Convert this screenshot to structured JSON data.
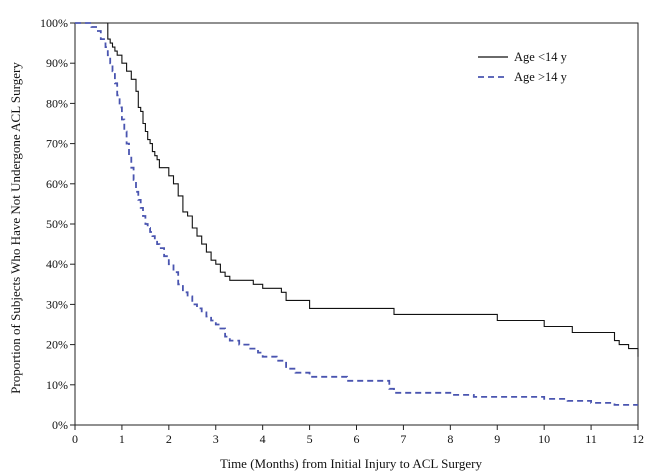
{
  "chart_data": {
    "type": "line",
    "title": "",
    "xlabel": "Time (Months) from Initial Injury to ACL Surgery",
    "ylabel": "Proportion of Subjects Who Have Not Undergone ACL Surgery",
    "xlim": [
      0,
      12
    ],
    "ylim": [
      0,
      100
    ],
    "x_ticks": [
      0,
      1,
      2,
      3,
      4,
      5,
      6,
      7,
      8,
      9,
      10,
      11,
      12
    ],
    "y_ticks": [
      0,
      10,
      20,
      30,
      40,
      50,
      60,
      70,
      80,
      90,
      100
    ],
    "y_tick_labels": [
      "0%",
      "10%",
      "20%",
      "30%",
      "40%",
      "50%",
      "60%",
      "70%",
      "80%",
      "90%",
      "100%"
    ],
    "grid": false,
    "legend_position": "top-right",
    "series": [
      {
        "name": "Age <14 y",
        "style": "solid",
        "color": "#111111",
        "x": [
          0,
          0.7,
          0.7,
          0.75,
          0.8,
          0.85,
          0.9,
          0.95,
          1.0,
          1.1,
          1.2,
          1.3,
          1.35,
          1.4,
          1.45,
          1.5,
          1.55,
          1.6,
          1.65,
          1.7,
          1.75,
          1.8,
          1.9,
          2.0,
          2.1,
          2.2,
          2.3,
          2.4,
          2.5,
          2.6,
          2.7,
          2.8,
          2.9,
          3.0,
          3.1,
          3.2,
          3.3,
          3.5,
          3.8,
          4.0,
          4.4,
          4.5,
          5.0,
          6.8,
          9.0,
          10.0,
          10.6,
          11.0,
          11.5,
          11.6,
          11.8,
          12.0
        ],
        "y": [
          100,
          100,
          96,
          95,
          94,
          93,
          92,
          92,
          90,
          88,
          86,
          83,
          79,
          78,
          75,
          73,
          71,
          70,
          68,
          67,
          66,
          64,
          64,
          62,
          60,
          57,
          53,
          52,
          49,
          47,
          45,
          43,
          41,
          40,
          38,
          37,
          36,
          36,
          35,
          34,
          33,
          31,
          29,
          27.5,
          26,
          24.5,
          23,
          23,
          21,
          20,
          19,
          17
        ]
      },
      {
        "name": "Age >14 y",
        "style": "dashed",
        "color": "#4a55b0",
        "x": [
          0,
          0.35,
          0.45,
          0.55,
          0.65,
          0.7,
          0.75,
          0.8,
          0.85,
          0.9,
          0.95,
          1.0,
          1.05,
          1.1,
          1.15,
          1.2,
          1.25,
          1.3,
          1.35,
          1.4,
          1.45,
          1.5,
          1.55,
          1.6,
          1.65,
          1.7,
          1.75,
          1.8,
          1.9,
          2.0,
          2.1,
          2.2,
          2.3,
          2.4,
          2.5,
          2.6,
          2.7,
          2.8,
          2.9,
          3.0,
          3.1,
          3.2,
          3.3,
          3.5,
          3.7,
          3.9,
          4.0,
          4.3,
          4.5,
          4.7,
          5.0,
          5.8,
          6.7,
          6.8,
          8.0,
          8.5,
          10.0,
          10.5,
          11.0,
          11.5,
          11.8,
          12.0
        ],
        "y": [
          100,
          99,
          98,
          96,
          94,
          92,
          90,
          88,
          85,
          82,
          79,
          76,
          73,
          70,
          67,
          64,
          61,
          58,
          56,
          54,
          52,
          50,
          49,
          48,
          47,
          46,
          45,
          44,
          42,
          40,
          38,
          35,
          33,
          32,
          30,
          29,
          28,
          27,
          26,
          25,
          24,
          22,
          21,
          20,
          19,
          18,
          17,
          16,
          14,
          13,
          12,
          11,
          9,
          8,
          7.5,
          7,
          6.5,
          6,
          5.5,
          5,
          5,
          5
        ]
      }
    ]
  }
}
